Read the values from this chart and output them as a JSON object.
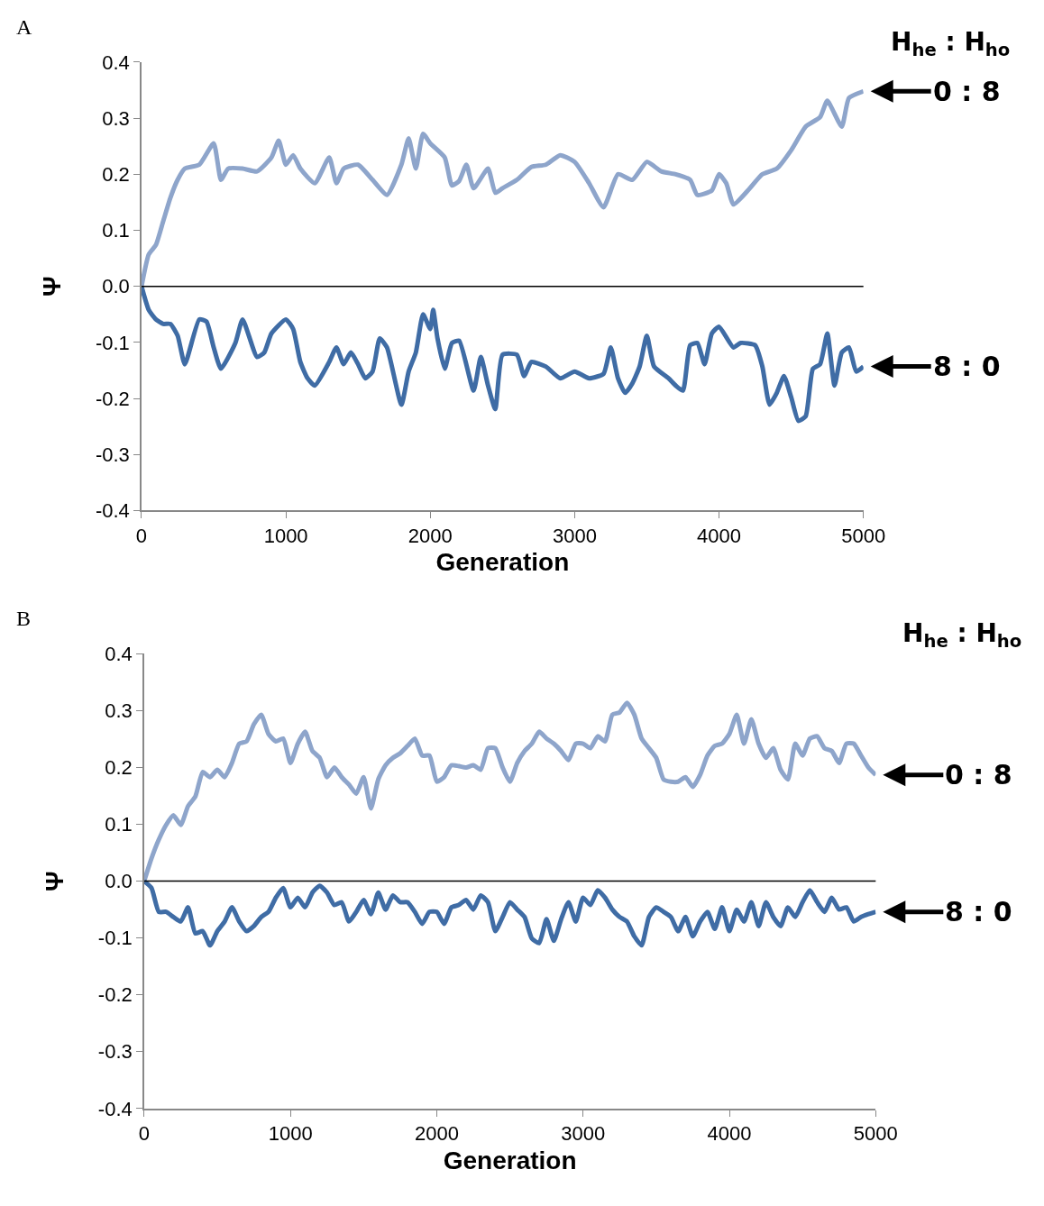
{
  "chart_data": [
    {
      "type": "line",
      "title": "A",
      "xlabel": "Generation",
      "ylabel": "Ψ",
      "legend_title": "H$_{he}$ : H$_{ho}$",
      "xlim": [
        0,
        5000
      ],
      "xticks": [
        0,
        1000,
        2000,
        3000,
        4000,
        5000
      ],
      "ylim": [
        -0.4,
        0.4
      ],
      "yticks": [
        {
          "value": 0.4,
          "label": "0.4"
        },
        {
          "value": 0.3,
          "label": "0.3"
        },
        {
          "value": 0.2,
          "label": "0.2"
        },
        {
          "value": 0.1,
          "label": "0.1"
        },
        {
          "value": 0,
          "label": "0.0"
        },
        {
          "value": -0.1,
          "label": "-0.1"
        },
        {
          "value": -0.2,
          "label": "-0.2"
        },
        {
          "value": -0.3,
          "label": "-0.3"
        },
        {
          "value": -0.4,
          "label": "-0.4"
        }
      ],
      "ref_lines": [
        {
          "axis": "y",
          "value": 0,
          "color": "#000000"
        }
      ],
      "series": [
        {
          "name": "0 : 8",
          "color": "#8ea5cb",
          "x": [
            0,
            50,
            100,
            150,
            200,
            250,
            300,
            400,
            500,
            550,
            600,
            700,
            800,
            900,
            950,
            1000,
            1050,
            1100,
            1200,
            1300,
            1350,
            1400,
            1500,
            1600,
            1700,
            1800,
            1850,
            1900,
            1950,
            2000,
            2100,
            2150,
            2200,
            2250,
            2300,
            2400,
            2450,
            2500,
            2600,
            2700,
            2800,
            2900,
            3000,
            3100,
            3200,
            3300,
            3400,
            3500,
            3600,
            3700,
            3800,
            3850,
            3950,
            4000,
            4050,
            4100,
            4200,
            4300,
            4400,
            4500,
            4600,
            4700,
            4750,
            4850,
            4900,
            5000
          ],
          "values": [
            0,
            0.057,
            0.074,
            0.116,
            0.158,
            0.19,
            0.21,
            0.217,
            0.255,
            0.19,
            0.21,
            0.21,
            0.205,
            0.23,
            0.26,
            0.217,
            0.234,
            0.21,
            0.184,
            0.23,
            0.184,
            0.21,
            0.217,
            0.19,
            0.163,
            0.217,
            0.264,
            0.21,
            0.272,
            0.255,
            0.23,
            0.18,
            0.188,
            0.217,
            0.175,
            0.21,
            0.167,
            0.175,
            0.19,
            0.213,
            0.217,
            0.234,
            0.222,
            0.184,
            0.141,
            0.2,
            0.19,
            0.222,
            0.205,
            0.2,
            0.19,
            0.163,
            0.171,
            0.2,
            0.184,
            0.146,
            0.171,
            0.2,
            0.21,
            0.243,
            0.285,
            0.302,
            0.331,
            0.285,
            0.336,
            0.348
          ]
        },
        {
          "name": "8 : 0",
          "color": "#3f6ca5",
          "x": [
            0,
            50,
            100,
            150,
            200,
            250,
            300,
            400,
            450,
            500,
            550,
            650,
            700,
            800,
            850,
            900,
            1000,
            1050,
            1100,
            1150,
            1200,
            1300,
            1350,
            1400,
            1450,
            1500,
            1550,
            1600,
            1650,
            1700,
            1800,
            1850,
            1900,
            1950,
            2000,
            2020,
            2050,
            2100,
            2150,
            2200,
            2300,
            2350,
            2400,
            2450,
            2500,
            2600,
            2650,
            2700,
            2800,
            2900,
            3000,
            3100,
            3200,
            3250,
            3300,
            3350,
            3400,
            3450,
            3500,
            3550,
            3650,
            3700,
            3750,
            3800,
            3850,
            3900,
            3950,
            4000,
            4100,
            4150,
            4250,
            4300,
            4350,
            4400,
            4450,
            4500,
            4550,
            4600,
            4650,
            4700,
            4750,
            4800,
            4850,
            4900,
            4950,
            5000
          ],
          "values": [
            0,
            -0.042,
            -0.059,
            -0.067,
            -0.067,
            -0.088,
            -0.139,
            -0.059,
            -0.063,
            -0.109,
            -0.147,
            -0.101,
            -0.059,
            -0.126,
            -0.118,
            -0.084,
            -0.059,
            -0.076,
            -0.135,
            -0.164,
            -0.177,
            -0.135,
            -0.109,
            -0.139,
            -0.118,
            -0.139,
            -0.164,
            -0.152,
            -0.093,
            -0.109,
            -0.211,
            -0.152,
            -0.118,
            -0.05,
            -0.076,
            -0.042,
            -0.093,
            -0.147,
            -0.101,
            -0.097,
            -0.186,
            -0.126,
            -0.177,
            -0.219,
            -0.122,
            -0.122,
            -0.16,
            -0.135,
            -0.143,
            -0.164,
            -0.152,
            -0.164,
            -0.156,
            -0.109,
            -0.164,
            -0.19,
            -0.173,
            -0.143,
            -0.088,
            -0.143,
            -0.164,
            -0.177,
            -0.186,
            -0.105,
            -0.101,
            -0.139,
            -0.084,
            -0.072,
            -0.109,
            -0.101,
            -0.105,
            -0.143,
            -0.211,
            -0.19,
            -0.16,
            -0.198,
            -0.24,
            -0.232,
            -0.147,
            -0.139,
            -0.084,
            -0.177,
            -0.118,
            -0.109,
            -0.152,
            -0.143
          ]
        }
      ]
    },
    {
      "type": "line",
      "title": "B",
      "xlabel": "Generation",
      "ylabel": "Ψ",
      "legend_title": "H$_{he}$ : H$_{ho}$",
      "xlim": [
        0,
        5000
      ],
      "xticks": [
        0,
        1000,
        2000,
        3000,
        4000,
        5000
      ],
      "ylim": [
        -0.4,
        0.4
      ],
      "yticks": [
        {
          "value": 0.4,
          "label": "0.4"
        },
        {
          "value": 0.3,
          "label": "0.3"
        },
        {
          "value": 0.2,
          "label": "0.2"
        },
        {
          "value": 0.1,
          "label": "0.1"
        },
        {
          "value": 0,
          "label": "0.0"
        },
        {
          "value": -0.1,
          "label": "-0.1"
        },
        {
          "value": -0.2,
          "label": "-0.2"
        },
        {
          "value": -0.3,
          "label": "-0.3"
        },
        {
          "value": -0.4,
          "label": "-0.4"
        }
      ],
      "ref_lines": [
        {
          "axis": "y",
          "value": 0,
          "color": "#000000"
        }
      ],
      "series": [
        {
          "name": "0 : 8",
          "color": "#8ea5cb",
          "x": [
            0,
            50,
            100,
            150,
            200,
            250,
            300,
            350,
            400,
            450,
            500,
            550,
            600,
            650,
            700,
            750,
            800,
            850,
            900,
            950,
            1000,
            1050,
            1100,
            1150,
            1200,
            1250,
            1300,
            1350,
            1400,
            1450,
            1500,
            1550,
            1600,
            1650,
            1700,
            1750,
            1800,
            1850,
            1900,
            1950,
            2000,
            2050,
            2100,
            2200,
            2250,
            2300,
            2350,
            2400,
            2450,
            2500,
            2550,
            2600,
            2650,
            2700,
            2750,
            2800,
            2850,
            2900,
            2950,
            3000,
            3050,
            3100,
            3150,
            3200,
            3250,
            3300,
            3350,
            3400,
            3450,
            3500,
            3550,
            3600,
            3650,
            3700,
            3750,
            3800,
            3850,
            3900,
            3950,
            4000,
            4050,
            4100,
            4150,
            4200,
            4250,
            4300,
            4350,
            4400,
            4450,
            4500,
            4550,
            4600,
            4650,
            4700,
            4750,
            4800,
            4850,
            4900,
            4950,
            5000
          ],
          "values": [
            0,
            0.04,
            0.073,
            0.099,
            0.116,
            0.099,
            0.132,
            0.149,
            0.192,
            0.183,
            0.196,
            0.183,
            0.208,
            0.242,
            0.246,
            0.276,
            0.293,
            0.259,
            0.246,
            0.251,
            0.208,
            0.242,
            0.263,
            0.229,
            0.217,
            0.183,
            0.2,
            0.183,
            0.17,
            0.154,
            0.183,
            0.128,
            0.179,
            0.204,
            0.217,
            0.225,
            0.238,
            0.251,
            0.221,
            0.221,
            0.175,
            0.183,
            0.204,
            0.2,
            0.204,
            0.196,
            0.234,
            0.234,
            0.2,
            0.175,
            0.208,
            0.229,
            0.242,
            0.263,
            0.251,
            0.242,
            0.229,
            0.213,
            0.242,
            0.242,
            0.234,
            0.255,
            0.246,
            0.293,
            0.297,
            0.314,
            0.293,
            0.251,
            0.234,
            0.217,
            0.179,
            0.175,
            0.175,
            0.183,
            0.166,
            0.187,
            0.221,
            0.238,
            0.242,
            0.259,
            0.293,
            0.242,
            0.285,
            0.242,
            0.217,
            0.234,
            0.196,
            0.179,
            0.242,
            0.221,
            0.251,
            0.255,
            0.234,
            0.229,
            0.208,
            0.242,
            0.242,
            0.221,
            0.2,
            0.187
          ]
        },
        {
          "name": "8 : 0",
          "color": "#3f6ca5",
          "x": [
            0,
            50,
            100,
            150,
            200,
            250,
            300,
            350,
            400,
            450,
            500,
            550,
            600,
            650,
            700,
            750,
            800,
            850,
            900,
            950,
            1000,
            1050,
            1100,
            1150,
            1200,
            1250,
            1300,
            1350,
            1400,
            1450,
            1500,
            1550,
            1600,
            1650,
            1700,
            1750,
            1800,
            1850,
            1900,
            1950,
            2000,
            2050,
            2100,
            2150,
            2200,
            2250,
            2300,
            2350,
            2400,
            2450,
            2500,
            2550,
            2600,
            2650,
            2700,
            2750,
            2800,
            2850,
            2900,
            2950,
            3000,
            3050,
            3100,
            3150,
            3200,
            3250,
            3300,
            3350,
            3400,
            3450,
            3500,
            3550,
            3600,
            3650,
            3700,
            3750,
            3800,
            3850,
            3900,
            3950,
            4000,
            4050,
            4100,
            4150,
            4200,
            4250,
            4300,
            4350,
            4400,
            4450,
            4500,
            4550,
            4600,
            4650,
            4700,
            4750,
            4800,
            4850,
            4900,
            4950,
            5000
          ],
          "values": [
            0,
            -0.012,
            -0.054,
            -0.054,
            -0.063,
            -0.071,
            -0.046,
            -0.092,
            -0.088,
            -0.113,
            -0.088,
            -0.071,
            -0.046,
            -0.071,
            -0.088,
            -0.079,
            -0.063,
            -0.054,
            -0.029,
            -0.012,
            -0.046,
            -0.029,
            -0.046,
            -0.02,
            -0.008,
            -0.02,
            -0.042,
            -0.037,
            -0.071,
            -0.054,
            -0.033,
            -0.058,
            -0.02,
            -0.05,
            -0.025,
            -0.037,
            -0.037,
            -0.054,
            -0.075,
            -0.054,
            -0.054,
            -0.075,
            -0.046,
            -0.042,
            -0.033,
            -0.05,
            -0.025,
            -0.037,
            -0.088,
            -0.063,
            -0.037,
            -0.05,
            -0.063,
            -0.101,
            -0.109,
            -0.067,
            -0.105,
            -0.067,
            -0.037,
            -0.071,
            -0.029,
            -0.042,
            -0.016,
            -0.029,
            -0.05,
            -0.063,
            -0.071,
            -0.097,
            -0.113,
            -0.063,
            -0.046,
            -0.054,
            -0.063,
            -0.088,
            -0.063,
            -0.097,
            -0.071,
            -0.054,
            -0.084,
            -0.046,
            -0.088,
            -0.05,
            -0.071,
            -0.037,
            -0.079,
            -0.037,
            -0.063,
            -0.079,
            -0.046,
            -0.063,
            -0.037,
            -0.016,
            -0.037,
            -0.054,
            -0.029,
            -0.05,
            -0.046,
            -0.071,
            -0.063,
            -0.058,
            -0.054
          ]
        }
      ]
    }
  ]
}
